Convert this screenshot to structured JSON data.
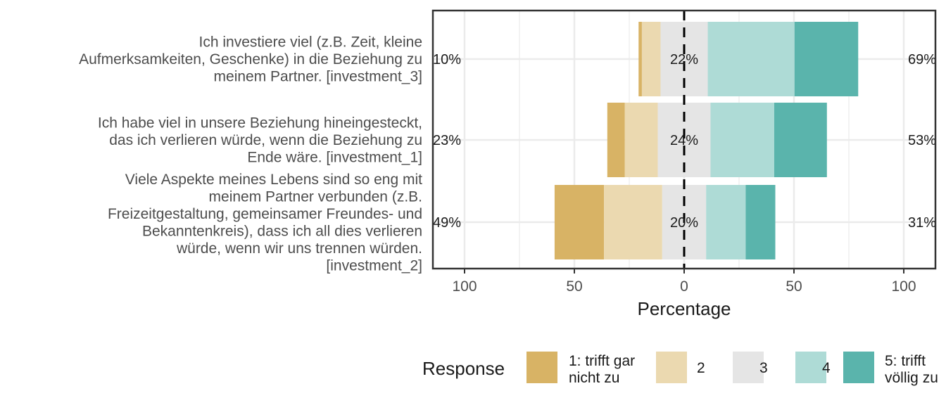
{
  "chart_data": {
    "type": "bar",
    "orientation": "horizontal-diverging",
    "xlabel": "Percentage",
    "xlim": [
      -100,
      100
    ],
    "xticks": [
      -100,
      -50,
      0,
      50,
      100
    ],
    "xtick_labels": [
      "100",
      "50",
      "0",
      "50",
      "100"
    ],
    "grid": true,
    "legend": {
      "title": "Response",
      "position": "bottom",
      "entries": [
        {
          "lines": [
            "1: trifft gar",
            "nicht zu"
          ],
          "color": "#D8B365"
        },
        {
          "lines": [
            "2"
          ],
          "color": "#EBD9B0"
        },
        {
          "lines": [
            "3"
          ],
          "color": "#E5E5E5"
        },
        {
          "lines": [
            "4"
          ],
          "color": "#AEDBD6"
        },
        {
          "lines": [
            "5: trifft",
            "völlig zu"
          ],
          "color": "#5AB4AC"
        }
      ]
    },
    "categories": [
      {
        "lines": [
          "Ich investiere viel (z.B. Zeit, kleine",
          "Aufmerksamkeiten, Geschenke) in die Beziehung zu",
          "meinem Partner. [investment_3]"
        ],
        "values": [
          1.5,
          8.5,
          21.5,
          39.5,
          29.0
        ],
        "low_label": "10%",
        "neutral_label": "22%",
        "high_label": "69%"
      },
      {
        "lines": [
          "Ich habe viel in unsere Beziehung hineingesteckt,",
          "das ich verlieren würde, wenn die Beziehung zu",
          "Ende wäre. [investment_1]"
        ],
        "values": [
          8.0,
          15.0,
          24.0,
          29.0,
          24.0
        ],
        "low_label": "23%",
        "neutral_label": "24%",
        "high_label": "53%"
      },
      {
        "lines": [
          "Viele Aspekte meines Lebens sind so eng mit",
          "meinem Partner verbunden (z.B.",
          "Freizeitgestaltung, gemeinsamer Freundes- und",
          "Bekanntenkreis), dass ich all dies verlieren",
          "würde, wenn wir uns trennen würden.",
          "[investment_2]"
        ],
        "values": [
          22.5,
          26.5,
          20.0,
          18.0,
          13.5
        ],
        "low_label": "49%",
        "neutral_label": "20%",
        "high_label": "31%"
      }
    ]
  }
}
